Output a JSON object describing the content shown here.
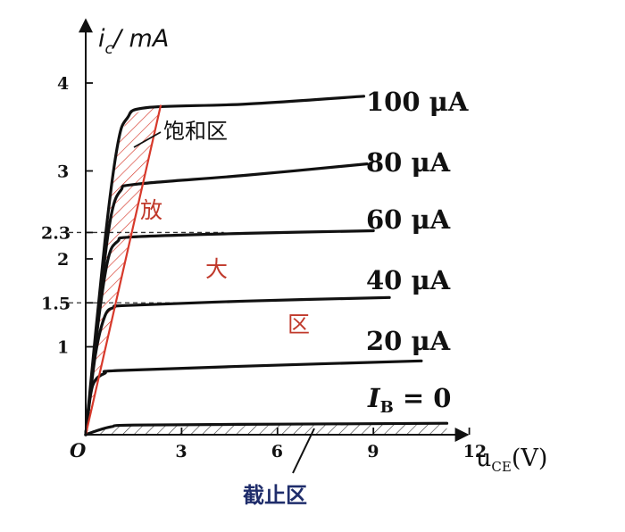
{
  "chart_data": {
    "type": "line",
    "xlabel_main": "u",
    "xlabel_sub": "CE",
    "xlabel_unit": "(V)",
    "ylabel_main": "i",
    "ylabel_sub": "c",
    "ylabel_unit": "/ mA",
    "origin_label": "O",
    "xlim": [
      0,
      13
    ],
    "ylim": [
      0,
      4.6
    ],
    "x_ticks": [
      3,
      6,
      9,
      12
    ],
    "y_ticks": [
      1,
      1.5,
      2,
      2.3,
      3,
      4
    ],
    "y_tick_labels": [
      "1",
      "1.5",
      "2",
      "2.3",
      "3",
      "4"
    ],
    "series": [
      {
        "name": "I_B = 0",
        "label_main": "I",
        "label_sub": "B",
        "label_rest": " = 0",
        "points": [
          [
            0,
            0
          ],
          [
            0.3,
            0.04
          ],
          [
            0.8,
            0.09
          ],
          [
            1.5,
            0.11
          ],
          [
            6,
            0.12
          ],
          [
            11.3,
            0.13
          ]
        ]
      },
      {
        "name": "20 μA",
        "label": "20 μA",
        "points": [
          [
            0,
            0
          ],
          [
            0.15,
            0.45
          ],
          [
            0.3,
            0.62
          ],
          [
            0.6,
            0.7
          ],
          [
            1.0,
            0.73
          ],
          [
            5,
            0.78
          ],
          [
            10.5,
            0.84
          ]
        ]
      },
      {
        "name": "40 μA",
        "label": "40 μA",
        "points": [
          [
            0,
            0
          ],
          [
            0.3,
            0.9
          ],
          [
            0.6,
            1.35
          ],
          [
            0.9,
            1.45
          ],
          [
            1.3,
            1.47
          ],
          [
            5,
            1.52
          ],
          [
            9.5,
            1.56
          ]
        ]
      },
      {
        "name": "60 μA",
        "label": "60 μA",
        "points": [
          [
            0,
            0
          ],
          [
            0.4,
            1.3
          ],
          [
            0.7,
            2.0
          ],
          [
            1.0,
            2.2
          ],
          [
            1.5,
            2.25
          ],
          [
            5,
            2.29
          ],
          [
            9.0,
            2.32
          ]
        ]
      },
      {
        "name": "80 μA",
        "label": "80 μA",
        "points": [
          [
            0,
            0
          ],
          [
            0.5,
            1.7
          ],
          [
            0.8,
            2.5
          ],
          [
            1.1,
            2.78
          ],
          [
            1.6,
            2.85
          ],
          [
            5,
            2.95
          ],
          [
            8.8,
            3.08
          ]
        ]
      },
      {
        "name": "100 μA",
        "label": "100 μA",
        "points": [
          [
            0,
            0
          ],
          [
            0.6,
            2.2
          ],
          [
            1.0,
            3.3
          ],
          [
            1.3,
            3.6
          ],
          [
            1.9,
            3.72
          ],
          [
            5,
            3.76
          ],
          [
            8.7,
            3.85
          ]
        ]
      }
    ],
    "dashed_guides": [
      {
        "y": 2.3,
        "x_end": 9.0
      },
      {
        "y": 1.5,
        "x_end": 6.5
      }
    ],
    "saturation_boundary": [
      [
        0,
        0
      ],
      [
        2.35,
        3.75
      ]
    ],
    "regions": {
      "saturation": "饱和区",
      "amplification": [
        "放",
        "大",
        "区"
      ],
      "cutoff": "截止区"
    },
    "colors": {
      "curves": "#111111",
      "boundary": "#d7392b",
      "region_text": "#c0392b",
      "cutoff_text": "#1f2d6b"
    }
  }
}
